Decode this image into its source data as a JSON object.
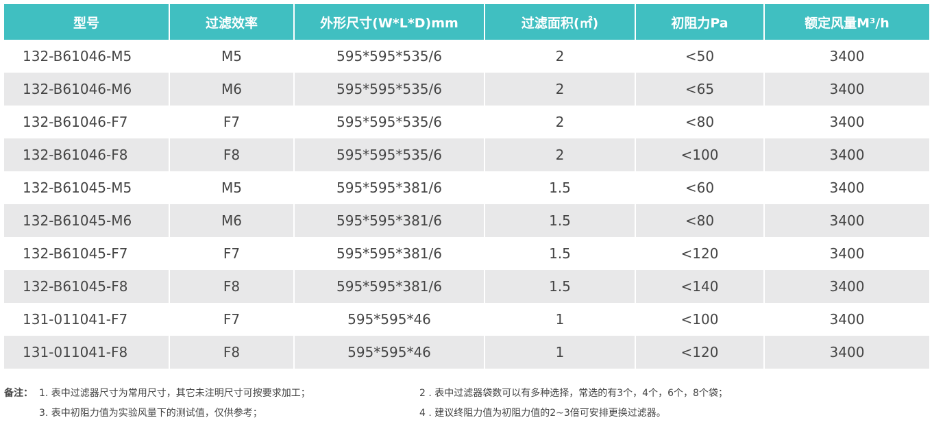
{
  "table": {
    "header": [
      "型号",
      "过滤效率",
      "外形尺寸(W*L*D)mm",
      "过滤面积(㎡)",
      "初阻力Pa",
      "额定风量M³/h"
    ],
    "rows": [
      [
        "132-B61046-M5",
        "M5",
        "595*595*535/6",
        "2",
        "<50",
        "3400"
      ],
      [
        "132-B61046-M6",
        "M6",
        "595*595*535/6",
        "2",
        "<65",
        "3400"
      ],
      [
        "132-B61046-F7",
        "F7",
        "595*595*535/6",
        "2",
        "<80",
        "3400"
      ],
      [
        "132-B61046-F8",
        "F8",
        "595*595*535/6",
        "2",
        "<100",
        "3400"
      ],
      [
        "132-B61045-M5",
        "M5",
        "595*595*381/6",
        "1.5",
        "<60",
        "3400"
      ],
      [
        "132-B61045-M6",
        "M6",
        "595*595*381/6",
        "1.5",
        "<80",
        "3400"
      ],
      [
        "132-B61045-F7",
        "F7",
        "595*595*381/6",
        "1.5",
        "<120",
        "3400"
      ],
      [
        "132-B61045-F8",
        "F8",
        "595*595*381/6",
        "1.5",
        "<140",
        "3400"
      ],
      [
        "131-011041-F7",
        "F7",
        "595*595*46",
        "1",
        "<100",
        "3400"
      ],
      [
        "131-011041-F8",
        "F8",
        "595*595*46",
        "1",
        "<120",
        "3400"
      ]
    ]
  },
  "notes": {
    "label": "备注：",
    "items": [
      "1. 表中过滤器尺寸为常用尺寸，其它未注明尺寸可按要求加工；",
      "2 . 表中过滤器袋数可以有多种选择，常选的有3个，4个，6个，8个袋；",
      "3. 表中初阻力值为实验风量下的测试值，仅供参考；",
      "4 . 建议终阻力值为初阻力值的2~3倍可安排更换过滤器。"
    ]
  }
}
